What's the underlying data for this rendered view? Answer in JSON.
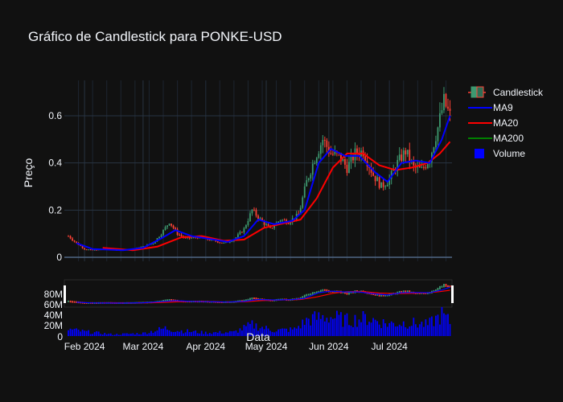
{
  "chart_data": {
    "type": "candlestick",
    "title": "Gráfico de Candlestick para PONKE-USD",
    "xlabel": "Data",
    "ylabel": "Preço",
    "x_ticks": [
      "Feb 2024",
      "Mar 2024",
      "Apr 2024",
      "May 2024",
      "Jun 2024",
      "Jul 2024"
    ],
    "y_ticks": [
      0,
      0.2,
      0.4,
      0.6
    ],
    "ylim": [
      0,
      0.75
    ],
    "volume_ticks": [
      "0",
      "20M",
      "40M",
      "60M",
      "80M"
    ],
    "volume_ylim": [
      0,
      90
    ],
    "legend_position": "top-right",
    "grid": true,
    "colors": {
      "increasing": "#3d9970",
      "decreasing": "#ff4136",
      "ma9": "#0000ff",
      "ma20": "#ff0000",
      "ma200": "#008000",
      "volume": "#0000ff",
      "background": "#111111"
    },
    "series": [
      {
        "name": "Candlestick",
        "kind": "ohlc"
      },
      {
        "name": "MA9",
        "kind": "line"
      },
      {
        "name": "MA20",
        "kind": "line"
      },
      {
        "name": "MA200",
        "kind": "line"
      },
      {
        "name": "Volume",
        "kind": "bar"
      }
    ],
    "price_keypoints": [
      [
        "2024-01-24",
        0.09
      ],
      [
        "2024-01-28",
        0.06
      ],
      [
        "2024-02-01",
        0.035
      ],
      [
        "2024-02-05",
        0.03
      ],
      [
        "2024-02-12",
        0.035
      ],
      [
        "2024-02-18",
        0.03
      ],
      [
        "2024-02-25",
        0.035
      ],
      [
        "2024-03-01",
        0.045
      ],
      [
        "2024-03-06",
        0.06
      ],
      [
        "2024-03-10",
        0.1
      ],
      [
        "2024-03-14",
        0.15
      ],
      [
        "2024-03-18",
        0.1
      ],
      [
        "2024-03-22",
        0.08
      ],
      [
        "2024-03-28",
        0.085
      ],
      [
        "2024-04-05",
        0.07
      ],
      [
        "2024-04-10",
        0.06
      ],
      [
        "2024-04-15",
        0.075
      ],
      [
        "2024-04-20",
        0.12
      ],
      [
        "2024-04-24",
        0.2
      ],
      [
        "2024-04-28",
        0.16
      ],
      [
        "2024-05-03",
        0.12
      ],
      [
        "2024-05-08",
        0.16
      ],
      [
        "2024-05-12",
        0.15
      ],
      [
        "2024-05-17",
        0.18
      ],
      [
        "2024-05-21",
        0.32
      ],
      [
        "2024-05-25",
        0.42
      ],
      [
        "2024-05-29",
        0.5
      ],
      [
        "2024-06-02",
        0.44
      ],
      [
        "2024-06-06",
        0.43
      ],
      [
        "2024-06-10",
        0.38
      ],
      [
        "2024-06-14",
        0.44
      ],
      [
        "2024-06-18",
        0.45
      ],
      [
        "2024-06-23",
        0.35
      ],
      [
        "2024-06-27",
        0.3
      ],
      [
        "2024-07-01",
        0.33
      ],
      [
        "2024-07-05",
        0.4
      ],
      [
        "2024-07-09",
        0.45
      ],
      [
        "2024-07-13",
        0.38
      ],
      [
        "2024-07-17",
        0.37
      ],
      [
        "2024-07-21",
        0.42
      ],
      [
        "2024-07-25",
        0.55
      ],
      [
        "2024-07-28",
        0.66
      ],
      [
        "2024-07-31",
        0.6
      ]
    ],
    "ma9_points": [
      [
        "2024-01-28",
        0.06
      ],
      [
        "2024-02-05",
        0.035
      ],
      [
        "2024-02-20",
        0.03
      ],
      [
        "2024-03-01",
        0.04
      ],
      [
        "2024-03-10",
        0.08
      ],
      [
        "2024-03-17",
        0.115
      ],
      [
        "2024-03-25",
        0.09
      ],
      [
        "2024-04-05",
        0.075
      ],
      [
        "2024-04-12",
        0.065
      ],
      [
        "2024-04-20",
        0.09
      ],
      [
        "2024-04-27",
        0.16
      ],
      [
        "2024-05-05",
        0.14
      ],
      [
        "2024-05-14",
        0.155
      ],
      [
        "2024-05-20",
        0.2
      ],
      [
        "2024-05-27",
        0.4
      ],
      [
        "2024-06-02",
        0.46
      ],
      [
        "2024-06-09",
        0.43
      ],
      [
        "2024-06-16",
        0.43
      ],
      [
        "2024-06-24",
        0.36
      ],
      [
        "2024-06-30",
        0.32
      ],
      [
        "2024-07-07",
        0.4
      ],
      [
        "2024-07-14",
        0.41
      ],
      [
        "2024-07-21",
        0.4
      ],
      [
        "2024-07-27",
        0.5
      ],
      [
        "2024-07-31",
        0.6
      ]
    ],
    "ma20_points": [
      [
        "2024-02-10",
        0.04
      ],
      [
        "2024-02-25",
        0.03
      ],
      [
        "2024-03-08",
        0.045
      ],
      [
        "2024-03-20",
        0.085
      ],
      [
        "2024-03-30",
        0.09
      ],
      [
        "2024-04-10",
        0.07
      ],
      [
        "2024-04-20",
        0.075
      ],
      [
        "2024-04-30",
        0.125
      ],
      [
        "2024-05-10",
        0.145
      ],
      [
        "2024-05-18",
        0.16
      ],
      [
        "2024-05-26",
        0.25
      ],
      [
        "2024-06-03",
        0.38
      ],
      [
        "2024-06-10",
        0.44
      ],
      [
        "2024-06-18",
        0.44
      ],
      [
        "2024-06-26",
        0.39
      ],
      [
        "2024-07-04",
        0.37
      ],
      [
        "2024-07-12",
        0.38
      ],
      [
        "2024-07-20",
        0.4
      ],
      [
        "2024-07-26",
        0.44
      ],
      [
        "2024-07-31",
        0.49
      ]
    ],
    "volume_keypoints": [
      [
        "2024-01-24",
        12
      ],
      [
        "2024-02-01",
        8
      ],
      [
        "2024-02-15",
        3
      ],
      [
        "2024-03-01",
        5
      ],
      [
        "2024-03-12",
        14
      ],
      [
        "2024-03-18",
        10
      ],
      [
        "2024-04-01",
        6
      ],
      [
        "2024-04-15",
        7
      ],
      [
        "2024-04-24",
        20
      ],
      [
        "2024-05-05",
        10
      ],
      [
        "2024-05-15",
        12
      ],
      [
        "2024-05-22",
        30
      ],
      [
        "2024-06-01",
        35
      ],
      [
        "2024-06-10",
        28
      ],
      [
        "2024-06-20",
        32
      ],
      [
        "2024-06-30",
        22
      ],
      [
        "2024-07-10",
        24
      ],
      [
        "2024-07-20",
        20
      ],
      [
        "2024-07-27",
        38
      ],
      [
        "2024-07-31",
        25
      ]
    ]
  }
}
